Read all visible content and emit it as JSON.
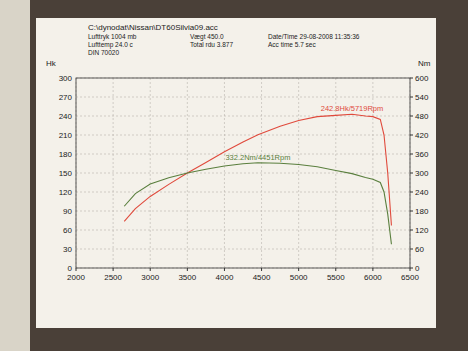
{
  "chart_data": {
    "type": "line",
    "title": "C:\\dynodat\\Nissan\\DT60Silvia09.acc",
    "header": [
      [
        "Lufttryk 1004 mb",
        "Vægt 450.0",
        "Date/Time 29-08-2008 11:35:36"
      ],
      [
        "Lufttemp 24.0 c",
        "Total rdu 3.877",
        "Acc time 5.7 sec"
      ],
      [
        "DIN 70020"
      ]
    ],
    "y_label": "Hk",
    "y2_label": "Nm",
    "x": [
      2650,
      2800,
      3000,
      3250,
      3500,
      3750,
      4000,
      4250,
      4451,
      4750,
      5000,
      5250,
      5500,
      5719,
      5900,
      6000,
      6100,
      6150,
      6200,
      6250
    ],
    "series": [
      {
        "color": "#e04a3c",
        "values": [
          73.6,
          93.7,
          113,
          132,
          150,
          166.6,
          183.4,
          199,
          210.5,
          223.9,
          232.8,
          239,
          241,
          242.8,
          240,
          239,
          234.5,
          210,
          150,
          67
        ]
      },
      {
        "color": "#5a7f3e",
        "axis": "y2",
        "values": [
          195,
          235,
          265,
          285,
          300,
          312,
          322,
          329,
          332.2,
          331,
          327,
          320,
          308,
          298,
          286,
          280,
          270,
          240,
          170,
          75
        ]
      }
    ],
    "annotations": [
      {
        "text": "242.8Hk/5719Rpm",
        "x": 5719,
        "y": 242.8,
        "color": "#e04a3c"
      },
      {
        "text": "332.2Nm/4451Rpm",
        "x": 4451,
        "y2": 332.2,
        "color": "#5a7f3e"
      }
    ],
    "xlim": [
      2000,
      6500
    ],
    "xticks": [
      2000,
      2500,
      3000,
      3500,
      4000,
      4500,
      5000,
      5500,
      6000,
      6500
    ],
    "ylim": [
      0,
      300
    ],
    "yticks": [
      0,
      30,
      60,
      90,
      120,
      150,
      180,
      210,
      240,
      270,
      300
    ],
    "y2lim": [
      0,
      600
    ],
    "y2ticks": [
      0,
      60,
      120,
      180,
      240,
      300,
      360,
      420,
      480,
      540,
      600
    ],
    "grid": true
  }
}
